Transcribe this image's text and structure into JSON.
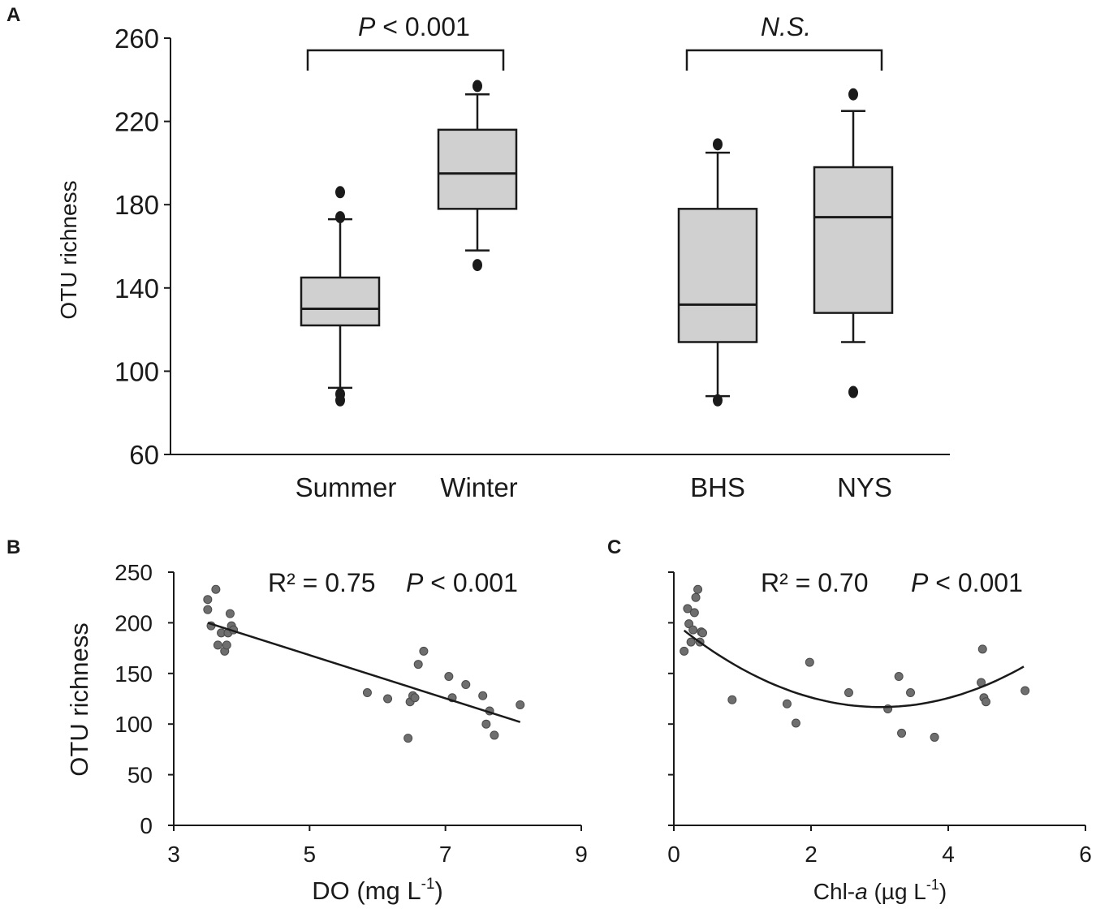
{
  "chart_data": [
    {
      "panel": "A",
      "type": "box",
      "ylabel": "OTU richness",
      "ylim": [
        60,
        260
      ],
      "yticks": [
        "60",
        "100",
        "140",
        "180",
        "220",
        "260"
      ],
      "categories": [
        "Summer",
        "Winter",
        "BHS",
        "NYS"
      ],
      "boxes": [
        {
          "name": "Summer",
          "whisker_low": 92,
          "q1": 122,
          "median": 130,
          "q3": 145,
          "whisker_high": 173,
          "outliers": [
            86,
            89,
            174,
            186
          ]
        },
        {
          "name": "Winter",
          "whisker_low": 158,
          "q1": 178,
          "median": 195,
          "q3": 216,
          "whisker_high": 233,
          "outliers": [
            151,
            237
          ]
        },
        {
          "name": "BHS",
          "whisker_low": 88,
          "q1": 114,
          "median": 132,
          "q3": 178,
          "whisker_high": 205,
          "outliers": [
            86,
            209
          ]
        },
        {
          "name": "NYS",
          "whisker_low": 114,
          "q1": 128,
          "median": 174,
          "q3": 198,
          "whisker_high": 225,
          "outliers": [
            90,
            233
          ]
        }
      ],
      "comparisons": [
        {
          "groups": [
            "Summer",
            "Winter"
          ],
          "label_italic": "P",
          "label_rest": " < 0.001"
        },
        {
          "groups": [
            "BHS",
            "NYS"
          ],
          "label_italic": "N.S.",
          "label_rest": ""
        }
      ]
    },
    {
      "panel": "B",
      "type": "scatter",
      "xlabel_main": "DO (mg L",
      "xlabel_sup": "-1",
      "xlabel_end": ")",
      "ylabel": "OTU richness",
      "xlim": [
        3,
        9
      ],
      "ylim": [
        0,
        250
      ],
      "xticks": [
        "3",
        "5",
        "7",
        "9"
      ],
      "yticks": [
        "0",
        "50",
        "100",
        "150",
        "200",
        "250"
      ],
      "x": [
        3.5,
        3.5,
        3.55,
        3.62,
        3.65,
        3.7,
        3.75,
        3.78,
        3.8,
        3.83,
        3.85,
        3.88,
        5.85,
        6.15,
        6.45,
        6.48,
        6.52,
        6.55,
        6.6,
        6.68,
        7.05,
        7.1,
        7.3,
        7.55,
        7.6,
        7.65,
        7.72,
        8.1
      ],
      "y": [
        223,
        213,
        197,
        233,
        178,
        190,
        172,
        178,
        190,
        209,
        197,
        193,
        131,
        125,
        86,
        122,
        128,
        126,
        159,
        172,
        147,
        126,
        139,
        128,
        100,
        113,
        89,
        119
      ],
      "fit": {
        "kind": "linear",
        "x0": 3.5,
        "y0": 200,
        "x1": 8.1,
        "y1": 102
      },
      "annotation": {
        "r2": "R² = 0.75",
        "p_italic": "P",
        "p_rest": " < 0.001"
      }
    },
    {
      "panel": "C",
      "type": "scatter",
      "xlabel_main": "Chl-",
      "xlabel_italic": "a",
      "xlabel_mid": " (µg L",
      "xlabel_sup": "-1",
      "xlabel_end": ")",
      "ylabel": "",
      "xlim": [
        0,
        6
      ],
      "ylim": [
        0,
        250
      ],
      "xticks": [
        "0",
        "2",
        "4",
        "6"
      ],
      "x": [
        0.15,
        0.2,
        0.22,
        0.25,
        0.28,
        0.3,
        0.32,
        0.35,
        0.38,
        0.4,
        0.42,
        0.85,
        1.65,
        1.78,
        1.98,
        2.55,
        3.12,
        3.28,
        3.32,
        3.45,
        3.8,
        4.48,
        4.5,
        4.52,
        4.55,
        5.12
      ],
      "y": [
        172,
        214,
        199,
        181,
        193,
        210,
        225,
        233,
        181,
        191,
        190,
        124,
        120,
        101,
        161,
        131,
        115,
        147,
        91,
        131,
        87,
        141,
        174,
        126,
        122,
        133
      ],
      "fit": {
        "kind": "quadratic",
        "x_start": 0.15,
        "x_end": 5.1,
        "a": 9.2,
        "b": -55.5,
        "c": 200.5
      },
      "annotation": {
        "r2": "R² = 0.70",
        "p_italic": "P",
        "p_rest": " < 0.001"
      }
    }
  ]
}
